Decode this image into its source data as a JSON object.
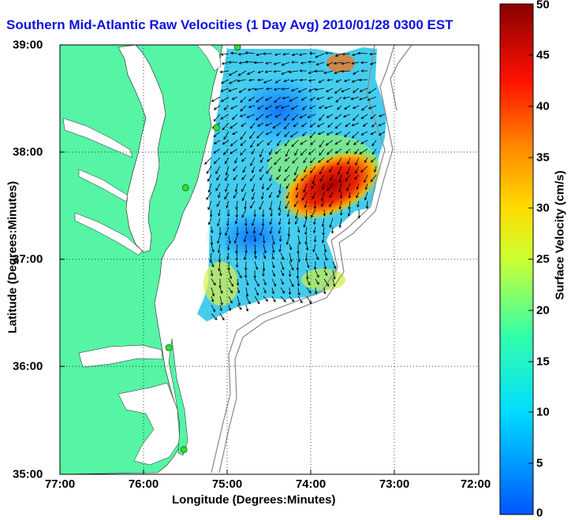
{
  "title": "Southern Mid-Atlantic Raw Velocities (1 Day Avg) 2010/01/28 0300 EST",
  "axes": {
    "xlabel": "Longitude (Degrees:Minutes)",
    "ylabel": "Latitude (Degrees:Minutes)",
    "xticks": [
      "77:00",
      "76:00",
      "75:00",
      "74:00",
      "73:00",
      "72:00"
    ],
    "yticks": [
      "39:00",
      "38:00",
      "37:00",
      "36:00",
      "35:00"
    ]
  },
  "colorbar": {
    "label": "Surface Velocity (cm/s)",
    "ticks": [
      "50",
      "45",
      "40",
      "35",
      "30",
      "25",
      "20",
      "15",
      "10",
      "5",
      "0"
    ],
    "range": [
      0,
      50
    ]
  },
  "colors": {
    "land": "#55f5a5",
    "water": "#ffffff",
    "title": "#1010e0",
    "station": "#33dd33"
  },
  "map": {
    "lon_range": [
      -77,
      -72
    ],
    "lat_range": [
      35,
      39
    ],
    "grid": "dotted",
    "stations": [
      {
        "lon": -74.88,
        "lat": 38.98
      },
      {
        "lon": -75.13,
        "lat": 38.23
      },
      {
        "lon": -75.5,
        "lat": 37.67
      },
      {
        "lon": -75.7,
        "lat": 36.18
      },
      {
        "lon": -75.52,
        "lat": 35.23
      }
    ]
  }
}
